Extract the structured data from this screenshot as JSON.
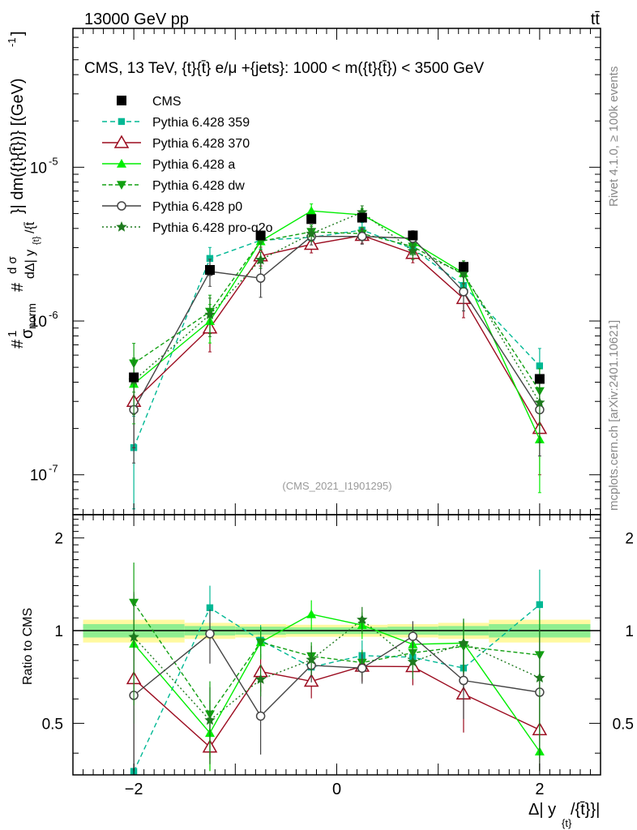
{
  "header": {
    "left": "13000 GeV pp",
    "right": "tt̄"
  },
  "side_labels": {
    "rivet": "Rivet 4.1.0, ≥ 100k events",
    "mcplots": "mcplots.cern.ch [arXiv:2401.10621]"
  },
  "chart_data": {
    "type": "line",
    "title": "CMS, 13 TeV, {t}{t̄} e/μ +{jets}: 1000 < m({t}{t̄}) < 3500 GeV",
    "watermark": "(CMS_2021_I1901295)",
    "ylabel_main": "1/σnorm dσ/dΔ|y_{t}/{t̄}| / dm({t}{t̄})} [(GeV)^-1]",
    "ylabel_parts": {
      "hash": "#",
      "one": "1",
      "sigma": "σ",
      "norm": "norm",
      "hash2": "#",
      "dsig": "d σ",
      "dy": "dΔ| y",
      "sub": "{t}",
      "tail": "/{t̄",
      "rest": "}| dm({t}{t̄})} [(GeV)",
      "exp": "-1",
      "close": "]"
    },
    "xlabel": "Δ| y",
    "xlabel_sub": "{t}",
    "xlabel_tail": "/{t̄}}|",
    "ylabel_ratio": "Ratio to CMS",
    "xlim": [
      -2.6,
      2.6
    ],
    "ylim": [
      5.5e-08,
      8e-05
    ],
    "ratio_ylim": [
      0.34,
      2.38
    ],
    "x_ticks": [
      "−2",
      "0",
      "2"
    ],
    "y_ticks": [
      "10^-7",
      "10^-6",
      "10^-5"
    ],
    "ratio_ticks": [
      "0.5",
      "1",
      "2"
    ],
    "x": [
      -2.0,
      -1.25,
      -0.75,
      -0.25,
      0.25,
      0.75,
      1.25,
      2.0
    ],
    "bin_edges": [
      -2.5,
      -1.5,
      -1.0,
      -0.5,
      0.0,
      0.5,
      1.0,
      1.5,
      2.5
    ],
    "data": {
      "name": "CMS",
      "values": [
        4.3e-07,
        2.15e-06,
        3.6e-06,
        4.6e-06,
        4.7e-06,
        3.6e-06,
        2.25e-06,
        4.2e-07
      ],
      "band_outer": [
        0.085,
        0.06,
        0.05,
        0.045,
        0.045,
        0.05,
        0.06,
        0.085
      ],
      "band_inner": [
        0.05,
        0.035,
        0.03,
        0.025,
        0.025,
        0.03,
        0.035,
        0.05
      ]
    },
    "series": [
      {
        "name": "Pythia 6.428 359",
        "color": "#00b894",
        "marker": "square",
        "dash": "6,4",
        "values": [
          1.5e-07,
          2.55e-06,
          3.35e-06,
          3.5e-06,
          3.9e-06,
          2.95e-06,
          1.7e-06,
          5.1e-07
        ],
        "errors": [
          0.6,
          0.18,
          0.12,
          0.12,
          0.12,
          0.12,
          0.18,
          0.3
        ]
      },
      {
        "name": "Pythia 6.428 370",
        "color": "#9b0b1f",
        "marker": "triangle-open",
        "dash": "",
        "values": [
          3e-07,
          9e-07,
          2.65e-06,
          3.15e-06,
          3.6e-06,
          2.75e-06,
          1.4e-06,
          2e-07
        ],
        "errors": [
          0.5,
          0.3,
          0.14,
          0.12,
          0.11,
          0.13,
          0.25,
          0.5
        ]
      },
      {
        "name": "Pythia 6.428 a",
        "color": "#00ee00",
        "marker": "triangle",
        "dash": "",
        "values": [
          3.9e-07,
          1e-06,
          3.3e-06,
          5.2e-06,
          4.9e-06,
          3.25e-06,
          2.05e-06,
          1.7e-07
        ],
        "errors": [
          0.45,
          0.28,
          0.12,
          0.11,
          0.1,
          0.12,
          0.2,
          0.55
        ]
      },
      {
        "name": "Pythia 6.428 dw",
        "color": "#12a012",
        "marker": "triangle-down",
        "dash": "5,3",
        "values": [
          5.3e-07,
          1.15e-06,
          3.3e-06,
          3.8e-06,
          3.7e-06,
          3.05e-06,
          2e-06,
          3.5e-07
        ],
        "errors": [
          0.35,
          0.28,
          0.12,
          0.11,
          0.1,
          0.12,
          0.2,
          0.4
        ]
      },
      {
        "name": "Pythia 6.428 p0",
        "color": "#444444",
        "marker": "circle-open",
        "dash": "",
        "values": [
          2.65e-07,
          2.1e-06,
          1.9e-06,
          3.55e-06,
          3.55e-06,
          3.45e-06,
          1.55e-06,
          2.65e-07
        ],
        "errors": [
          0.55,
          0.2,
          0.25,
          0.12,
          0.11,
          0.12,
          0.25,
          0.5
        ]
      },
      {
        "name": "Pythia 6.428 pro-q2o",
        "color": "#1e7a1e",
        "marker": "star",
        "dash": "2,3",
        "values": [
          4.1e-07,
          1.1e-06,
          2.5e-06,
          3.7e-06,
          5.1e-06,
          2.85e-06,
          2.05e-06,
          2.95e-07
        ],
        "errors": [
          0.4,
          0.28,
          0.12,
          0.11,
          0.1,
          0.12,
          0.2,
          0.45
        ]
      }
    ]
  },
  "legend": [
    "CMS",
    "Pythia 6.428 359",
    "Pythia 6.428 370",
    "Pythia 6.428 a",
    "Pythia 6.428 dw",
    "Pythia 6.428 p0",
    "Pythia 6.428 pro-q2o"
  ]
}
